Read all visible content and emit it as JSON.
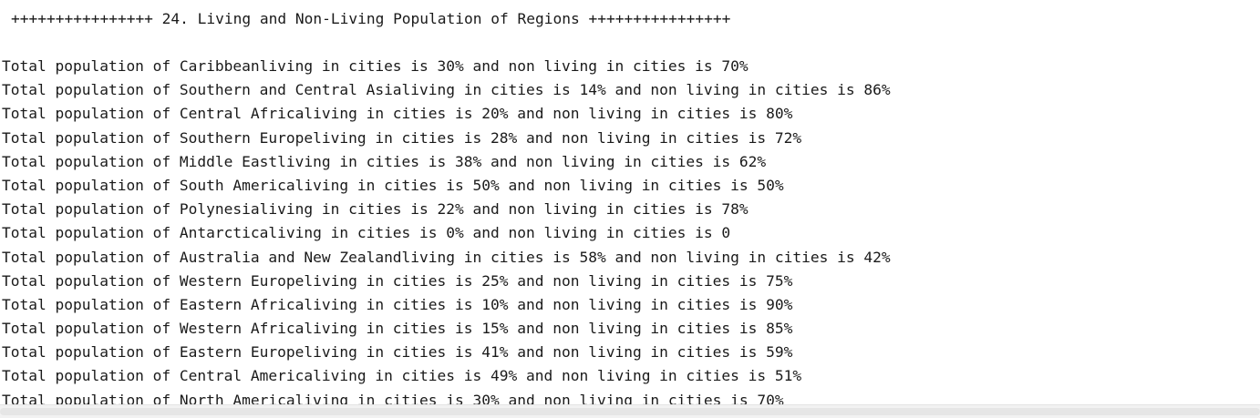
{
  "output": {
    "header": "++++++++++++++++ 24. Living and Non-Living Population of Regions ++++++++++++++++",
    "lines": [
      "Total population of Caribbeanliving in cities is 30% and non living in cities is 70%",
      "Total population of Southern and Central Asialiving in cities is 14% and non living in cities is 86%",
      "Total population of Central Africaliving in cities is 20% and non living in cities is 80%",
      "Total population of Southern Europeliving in cities is 28% and non living in cities is 72%",
      "Total population of Middle Eastliving in cities is 38% and non living in cities is 62%",
      "Total population of South Americaliving in cities is 50% and non living in cities is 50%",
      "Total population of Polynesialiving in cities is 22% and non living in cities is 78%",
      "Total population of Antarcticaliving in cities is 0% and non living in cities is 0",
      "Total population of Australia and New Zealandliving in cities is 58% and non living in cities is 42%",
      "Total population of Western Europeliving in cities is 25% and non living in cities is 75%",
      "Total population of Eastern Africaliving in cities is 10% and non living in cities is 90%",
      "Total population of Western Africaliving in cities is 15% and non living in cities is 85%",
      "Total population of Eastern Europeliving in cities is 41% and non living in cities is 59%",
      "Total population of Central Americaliving in cities is 49% and non living in cities is 51%",
      "Total population of North Americaliving in cities is 30% and non living in cities is 70%"
    ]
  }
}
